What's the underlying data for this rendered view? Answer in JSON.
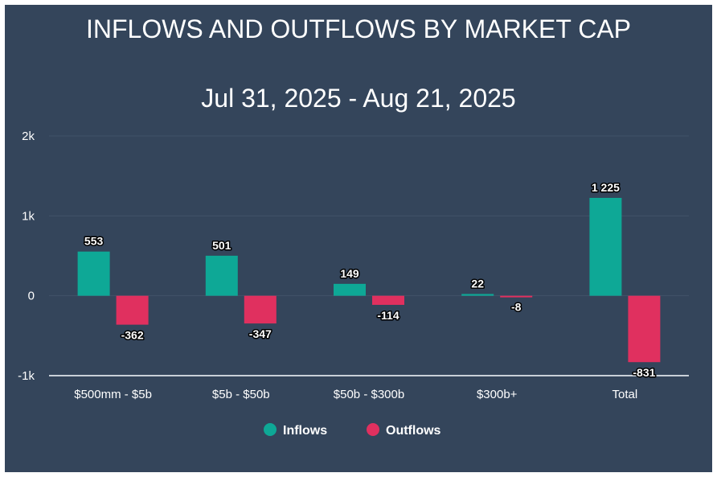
{
  "chart_data": {
    "type": "bar",
    "title": "INFLOWS AND OUTFLOWS BY MARKET CAP",
    "subtitle": "Jul 31, 2025 - Aug 21, 2025",
    "categories": [
      "$500mm - $5b",
      "$5b - $50b",
      "$50b - $300b",
      "$300b+",
      "Total"
    ],
    "series": [
      {
        "name": "Inflows",
        "color": "#0ea896",
        "values": [
          553,
          501,
          149,
          22,
          1225
        ],
        "labels": [
          "553",
          "501",
          "149",
          "22",
          "1 225"
        ]
      },
      {
        "name": "Outflows",
        "color": "#e0305f",
        "values": [
          -362,
          -347,
          -114,
          -8,
          -831
        ],
        "labels": [
          "-362",
          "-347",
          "-114",
          "-8",
          "-831"
        ]
      }
    ],
    "ylim": [
      -1000,
      2000
    ],
    "yticks": [
      -1000,
      0,
      1000,
      2000
    ],
    "ytick_labels": [
      "-1k",
      "0",
      "1k",
      "2k"
    ],
    "xlabel": "",
    "ylabel": "",
    "grid": true,
    "legend": "bottom-center"
  }
}
